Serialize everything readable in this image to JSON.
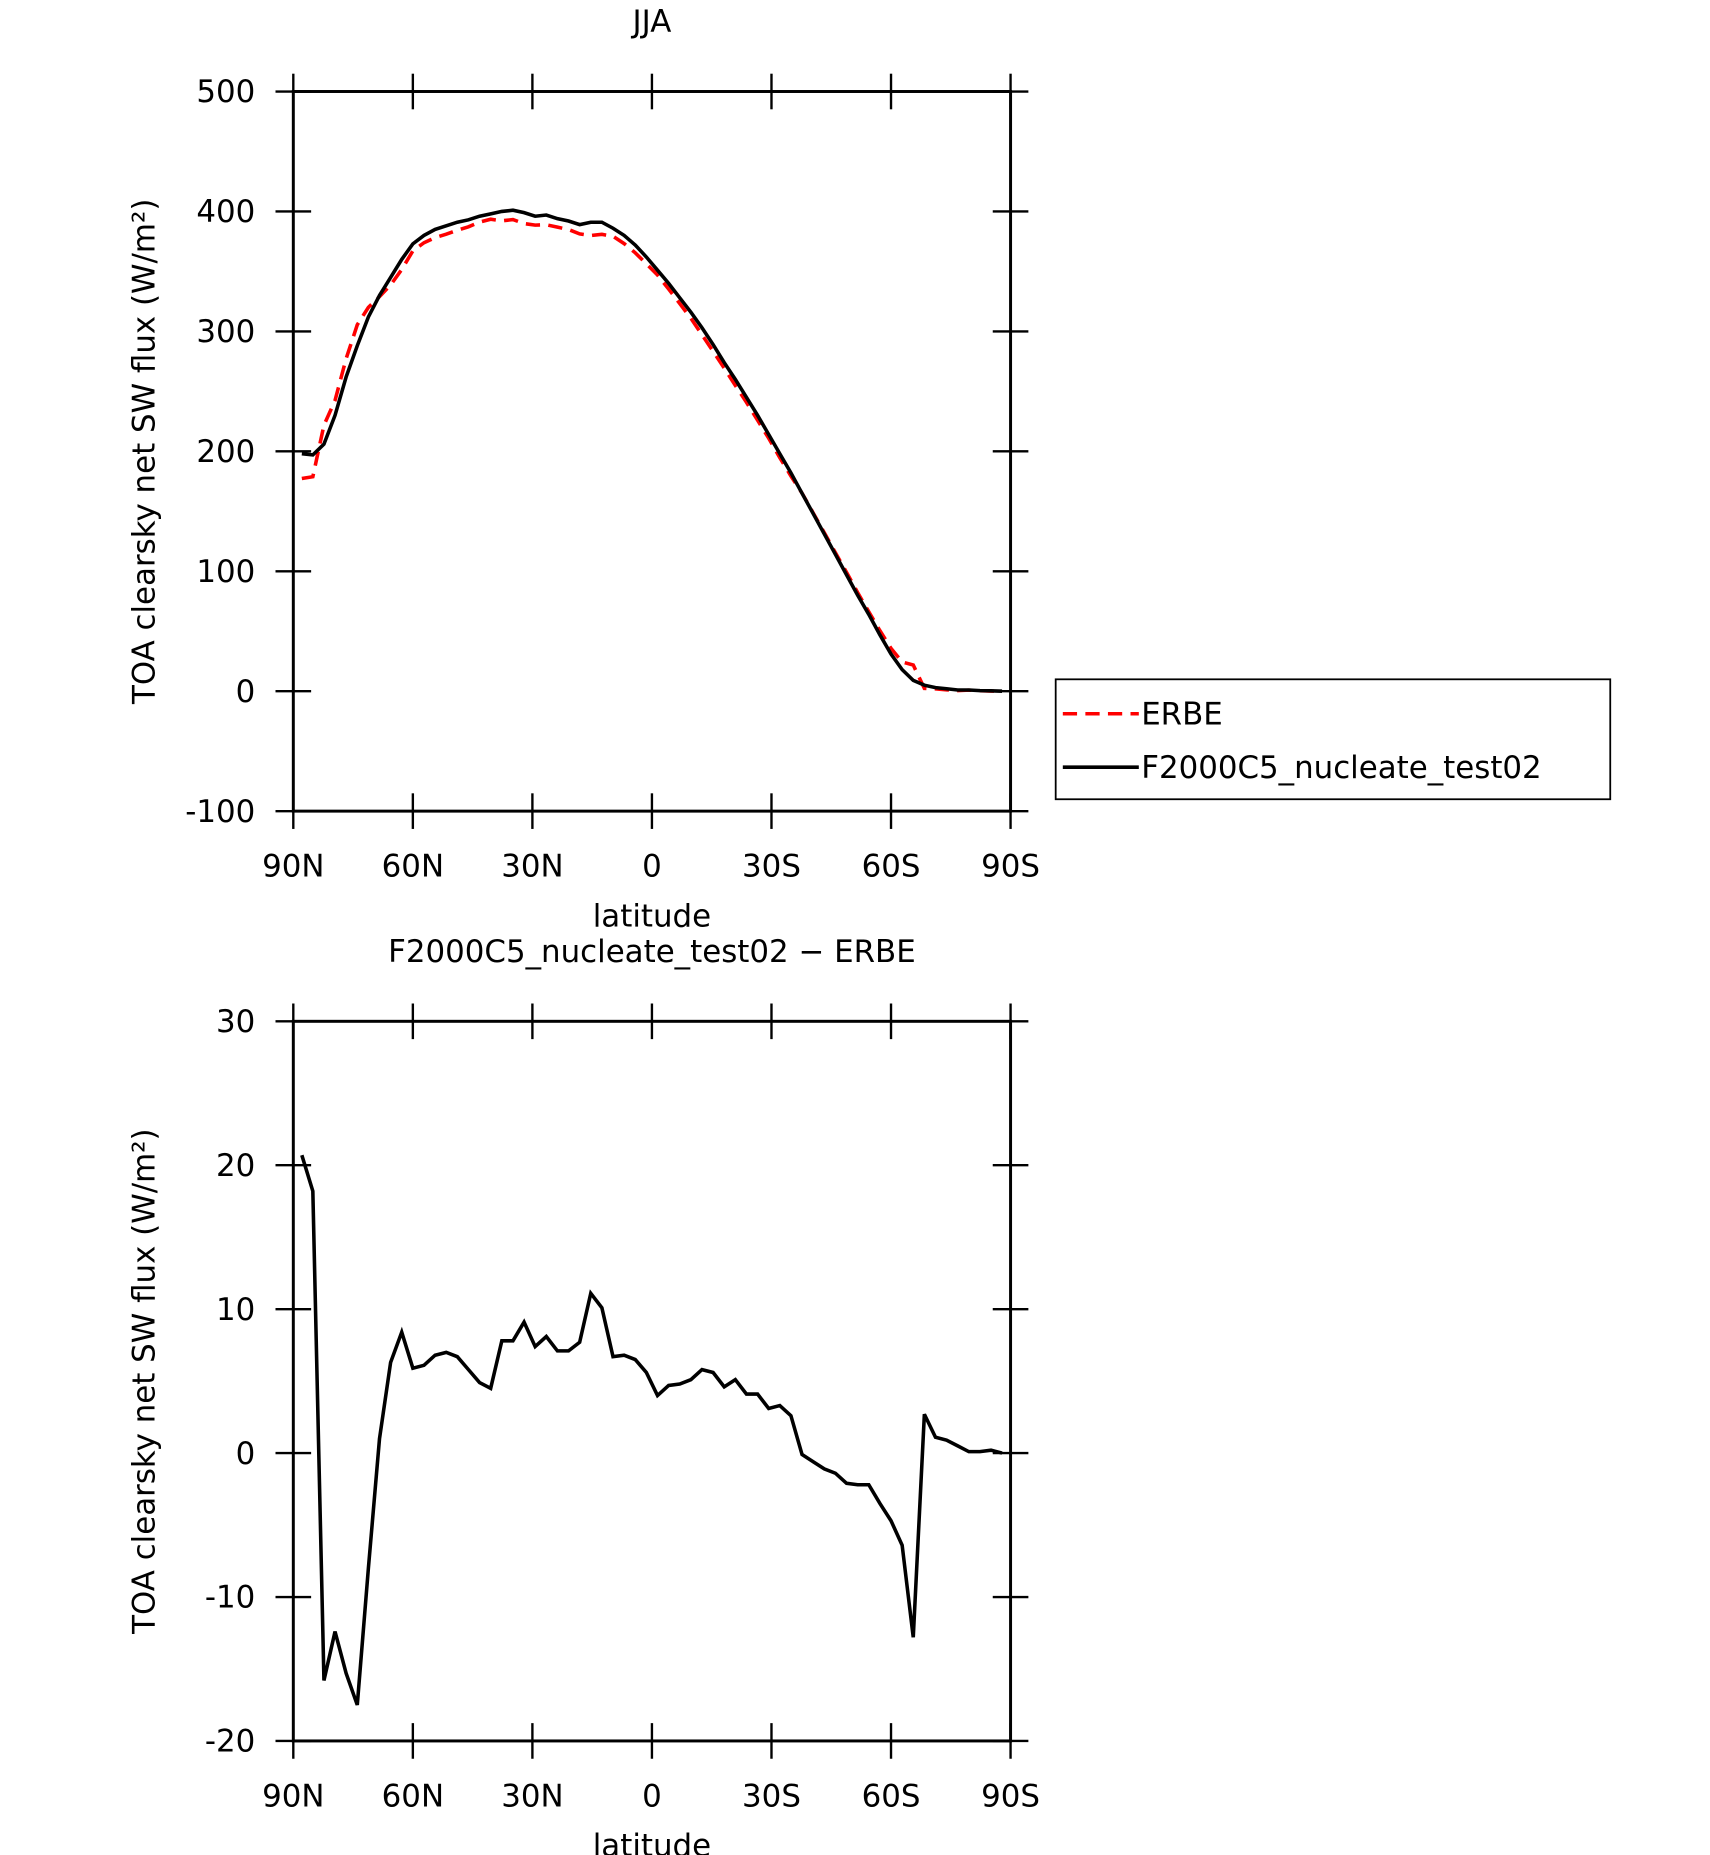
{
  "chart_data": [
    {
      "type": "line",
      "title": "JJA",
      "xlabel": "latitude",
      "ylabel": "TOA clearsky net SW flux (W/m²)",
      "x": [
        87.86,
        85.1,
        82.31,
        79.53,
        76.74,
        73.95,
        71.16,
        68.37,
        65.58,
        62.79,
        60,
        57.21,
        54.42,
        51.63,
        48.84,
        46.05,
        43.26,
        40.47,
        37.67,
        34.88,
        32.09,
        29.3,
        26.51,
        23.72,
        20.93,
        18.14,
        15.35,
        12.56,
        9.77,
        6.98,
        4.19,
        1.4,
        -1.4,
        -4.19,
        -6.98,
        -9.77,
        -12.56,
        -15.35,
        -18.14,
        -20.93,
        -23.72,
        -26.51,
        -29.3,
        -32.09,
        -34.88,
        -37.67,
        -40.47,
        -43.26,
        -46.05,
        -48.84,
        -51.63,
        -54.42,
        -57.21,
        -60,
        -62.79,
        -65.58,
        -68.37,
        -71.16,
        -73.95,
        -76.74,
        -79.53,
        -82.31,
        -85.1,
        -87.86
      ],
      "series": [
        {
          "name": "ERBE",
          "color": "#ff0000",
          "dash": "dashed",
          "values": [
            177.3,
            178.8,
            221.8,
            242.4,
            277.3,
            305.5,
            320,
            329,
            338.7,
            351.6,
            367.1,
            373.9,
            378.2,
            381,
            384.3,
            387.2,
            391.1,
            393.5,
            392.2,
            393.2,
            389.9,
            388.6,
            388.9,
            386.9,
            384.9,
            381.3,
            379.9,
            380.9,
            379.3,
            373.2,
            365.5,
            356.4,
            347,
            335.3,
            323.2,
            310.9,
            297.2,
            283.4,
            269.4,
            254.9,
            240.9,
            225.9,
            210.9,
            194.7,
            179.4,
            165.1,
            148.6,
            132.1,
            115.4,
            99.1,
            82.2,
            66.2,
            50.5,
            35.7,
            24.4,
            21.8,
            2.3,
            1.9,
            1.1,
            0.5,
            0.9,
            0.4,
            0.1,
            0
          ]
        },
        {
          "name": "F2000C5_nucleate_test02",
          "color": "#000000",
          "dash": "solid",
          "values": [
            198,
            197,
            206,
            230,
            262,
            288,
            312,
            330,
            345,
            360,
            373,
            380,
            385,
            388,
            391,
            393,
            396,
            398,
            400,
            401,
            399,
            396,
            397,
            394,
            392,
            389,
            391,
            391,
            386,
            380,
            372,
            362,
            351,
            340,
            328,
            316,
            303,
            289,
            274,
            260,
            245,
            230,
            214,
            198,
            182,
            165,
            148,
            131,
            114,
            97,
            80,
            64,
            47,
            31,
            18,
            9,
            5,
            3,
            2,
            1,
            1,
            0.5,
            0.3,
            0
          ]
        }
      ],
      "xlim": [
        90,
        -90
      ],
      "xticks": [
        {
          "value": 90,
          "label": "90N"
        },
        {
          "value": 60,
          "label": "60N"
        },
        {
          "value": 30,
          "label": "30N"
        },
        0,
        {
          "value": -30,
          "label": "30S"
        },
        {
          "value": -60,
          "label": "60S"
        },
        {
          "value": -90,
          "label": "90S"
        }
      ],
      "ylim": [
        -100,
        500
      ],
      "yticks": [
        -100,
        0,
        100,
        200,
        300,
        400,
        500
      ],
      "grid": false,
      "legend": "right"
    },
    {
      "type": "line",
      "title": "F2000C5_nucleate_test02 − ERBE",
      "xlabel": "latitude",
      "ylabel": "TOA clearsky net SW flux (W/m²)",
      "x": [
        87.86,
        85.1,
        82.31,
        79.53,
        76.74,
        73.95,
        71.16,
        68.37,
        65.58,
        62.79,
        60,
        57.21,
        54.42,
        51.63,
        48.84,
        46.05,
        43.26,
        40.47,
        37.67,
        34.88,
        32.09,
        29.3,
        26.51,
        23.72,
        20.93,
        18.14,
        15.35,
        12.56,
        9.77,
        6.98,
        4.19,
        1.4,
        -1.4,
        -4.19,
        -6.98,
        -9.77,
        -12.56,
        -15.35,
        -18.14,
        -20.93,
        -23.72,
        -26.51,
        -29.3,
        -32.09,
        -34.88,
        -37.67,
        -40.47,
        -43.26,
        -46.05,
        -48.84,
        -51.63,
        -54.42,
        -57.21,
        -60,
        -62.79,
        -65.58,
        -68.37,
        -71.16,
        -73.95,
        -76.74,
        -79.53,
        -82.31,
        -85.1,
        -87.86
      ],
      "values": [
        20.7,
        18.2,
        -15.8,
        -12.4,
        -15.3,
        -17.5,
        -8,
        1,
        6.3,
        8.4,
        5.9,
        6.1,
        6.8,
        7,
        6.7,
        5.8,
        4.9,
        4.5,
        7.8,
        7.8,
        9.1,
        7.4,
        8.1,
        7.1,
        7.1,
        7.7,
        11.1,
        10.1,
        6.7,
        6.8,
        6.5,
        5.6,
        4,
        4.7,
        4.8,
        5.1,
        5.8,
        5.6,
        4.6,
        5.1,
        4.1,
        4.1,
        3.1,
        3.3,
        2.6,
        -0.1,
        -0.6,
        -1.1,
        -1.4,
        -2.1,
        -2.2,
        -2.2,
        -3.5,
        -4.7,
        -6.4,
        -12.8,
        2.7,
        1.1,
        0.9,
        0.5,
        0.1,
        0.1,
        0.2,
        0
      ],
      "color": "#000000",
      "xlim": [
        90,
        -90
      ],
      "xticks": [
        {
          "value": 90,
          "label": "90N"
        },
        {
          "value": 60,
          "label": "60N"
        },
        {
          "value": 30,
          "label": "30N"
        },
        0,
        {
          "value": -30,
          "label": "30S"
        },
        {
          "value": -60,
          "label": "60S"
        },
        {
          "value": -90,
          "label": "90S"
        }
      ],
      "ylim": [
        -20,
        30
      ],
      "yticks": [
        -20,
        -10,
        0,
        10,
        20,
        30
      ],
      "grid": false
    }
  ]
}
